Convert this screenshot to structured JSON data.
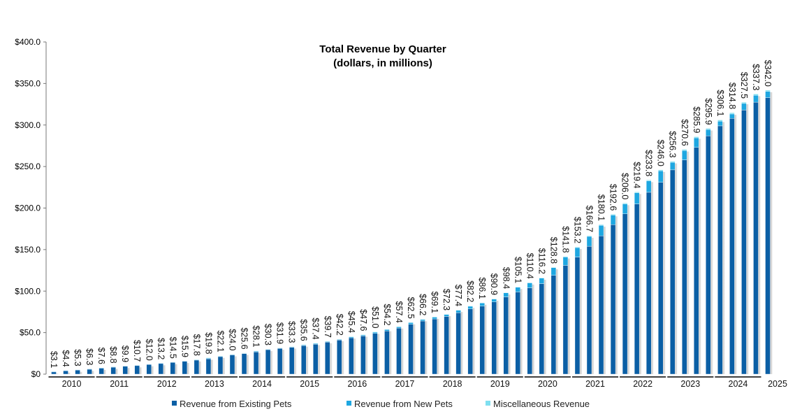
{
  "chart_data": {
    "type": "bar",
    "stacked": true,
    "title": "Total Revenue by Quarter",
    "subtitle": "(dollars, in millions)",
    "xlabel": "",
    "ylabel": "",
    "ylim": [
      0,
      400
    ],
    "y_ticks": [
      "$0",
      "$50.0",
      "$100.0",
      "$150.0",
      "$200.0",
      "$250.0",
      "$300.0",
      "$350.0",
      "$400.0"
    ],
    "x_tick_labels": [
      "2010",
      "2011",
      "2012",
      "2013",
      "2014",
      "2015",
      "2016",
      "2017",
      "2018",
      "2019",
      "2020",
      "2021",
      "2022",
      "2023",
      "2024",
      "2025"
    ],
    "quarters_per_year": 4,
    "grid": false,
    "legend_position": "bottom",
    "totals": [
      3.1,
      4.4,
      5.3,
      6.3,
      7.6,
      8.8,
      9.9,
      10.7,
      12.0,
      13.2,
      14.5,
      15.9,
      17.8,
      19.8,
      22.1,
      24.0,
      25.6,
      28.1,
      30.3,
      31.9,
      33.3,
      35.6,
      37.4,
      39.7,
      42.2,
      45.4,
      47.6,
      51.0,
      54.2,
      57.4,
      62.5,
      66.2,
      69.1,
      72.3,
      77.4,
      82.2,
      86.1,
      90.9,
      98.4,
      105.1,
      110.4,
      116.2,
      128.8,
      141.8,
      153.2,
      166.7,
      180.1,
      192.6,
      206.0,
      219.4,
      233.8,
      246.0,
      256.3,
      270.6,
      285.9,
      295.9,
      306.1,
      314.8,
      327.5,
      337.3,
      342.0
    ],
    "data_labels": [
      "$3.1",
      "$4.4",
      "$5.3",
      "$6.3",
      "$7.6",
      "$8.8",
      "$9.9",
      "$10.7",
      "$12.0",
      "$13.2",
      "$14.5",
      "$15.9",
      "$17.8",
      "$19.8",
      "$22.1",
      "$24.0",
      "$25.6",
      "$28.1",
      "$30.3",
      "$31.9",
      "$33.3",
      "$35.6",
      "$37.4",
      "$39.7",
      "$42.2",
      "$45.4",
      "$47.6",
      "$51.0",
      "$54.2",
      "$57.4",
      "$62.5",
      "$66.2",
      "$69.1",
      "$72.3",
      "$77.4",
      "$82.2",
      "$86.1",
      "$90.9",
      "$98.4",
      "$105.1",
      "$110.4",
      "$116.2",
      "$128.8",
      "$141.8",
      "$153.2",
      "$166.7",
      "$180.1",
      "$192.6",
      "$206.0",
      "$219.4",
      "$233.8",
      "$246.0",
      "$256.3",
      "$270.6",
      "$285.9",
      "$295.9",
      "$306.1",
      "$314.8",
      "$327.5",
      "$337.3",
      "$342.0"
    ],
    "series": [
      {
        "name": "Revenue from Existing Pets",
        "color": "#0b5fa5",
        "values": [
          3.0,
          4.3,
          5.2,
          6.2,
          7.4,
          8.6,
          9.7,
          10.5,
          11.8,
          13.0,
          14.3,
          15.6,
          16.9,
          18.5,
          21.1,
          23.2,
          24.8,
          26.7,
          29.5,
          31.0,
          32.4,
          34.4,
          36.0,
          38.5,
          41.0,
          43.8,
          46.0,
          49.0,
          52.0,
          55.5,
          60.0,
          64.0,
          66.5,
          69.5,
          74.0,
          78.5,
          82.0,
          87.0,
          93.0,
          99.0,
          104.0,
          109.0,
          119.0,
          131.0,
          141.0,
          154.0,
          166.5,
          180.0,
          193.0,
          205.0,
          219.0,
          231.0,
          246.0,
          258.0,
          273.0,
          287.0,
          299.0,
          308.0,
          318.0,
          327.5,
          333.0
        ]
      },
      {
        "name": "Revenue from New Pets",
        "color": "#1ea7e1",
        "values": [
          0.1,
          0.1,
          0.1,
          0.1,
          0.2,
          0.2,
          0.2,
          0.2,
          0.2,
          0.2,
          0.2,
          0.3,
          0.8,
          1.2,
          0.9,
          0.7,
          0.7,
          1.3,
          0.7,
          0.8,
          0.8,
          1.1,
          1.2,
          1.0,
          1.0,
          1.4,
          1.4,
          1.8,
          2.0,
          1.7,
          2.2,
          1.9,
          2.3,
          2.5,
          3.1,
          3.3,
          3.7,
          3.5,
          4.9,
          5.6,
          5.9,
          6.6,
          9.2,
          10.1,
          11.4,
          11.9,
          12.7,
          11.6,
          12.0,
          13.3,
          13.7,
          13.8,
          9.1,
          11.3,
          11.6,
          7.5,
          5.7,
          5.3,
          8.0,
          8.3,
          7.5
        ]
      },
      {
        "name": "Miscellaneous Revenue",
        "color": "#7fdff0",
        "values": [
          0,
          0,
          0,
          0,
          0,
          0,
          0,
          0,
          0,
          0,
          0,
          0,
          0.1,
          0.1,
          0.1,
          0.1,
          0.1,
          0.1,
          0.1,
          0.1,
          0.1,
          0.1,
          0.2,
          0.2,
          0.2,
          0.2,
          0.2,
          0.2,
          0.2,
          0.2,
          0.3,
          0.3,
          0.3,
          0.3,
          0.3,
          0.4,
          0.4,
          0.4,
          0.5,
          0.5,
          0.5,
          0.6,
          0.6,
          0.7,
          0.8,
          0.8,
          0.9,
          1.0,
          1.0,
          1.1,
          1.1,
          1.2,
          1.2,
          1.3,
          1.3,
          1.4,
          1.4,
          1.5,
          1.5,
          1.5,
          1.5
        ]
      }
    ]
  }
}
